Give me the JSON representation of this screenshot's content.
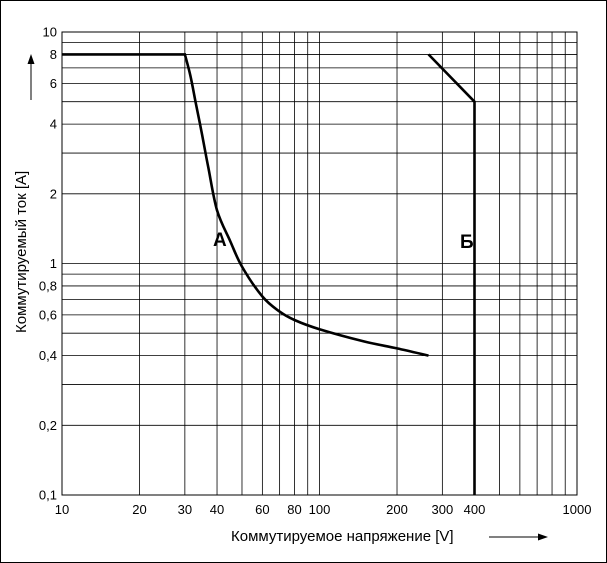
{
  "chart_data": {
    "type": "line",
    "x_scale": "log",
    "y_scale": "log",
    "xlim": [
      10,
      1000
    ],
    "ylim": [
      0.1,
      10
    ],
    "grid": true,
    "xlabel": "Коммутируемое напряжение [V]",
    "ylabel": "Коммутируемый ток [A]",
    "x_ticks": [
      {
        "value": 10,
        "label": "10"
      },
      {
        "value": 20,
        "label": "20"
      },
      {
        "value": 30,
        "label": "30"
      },
      {
        "value": 40,
        "label": "40"
      },
      {
        "value": 60,
        "label": "60"
      },
      {
        "value": 80,
        "label": "80"
      },
      {
        "value": 100,
        "label": "100"
      },
      {
        "value": 200,
        "label": "200"
      },
      {
        "value": 300,
        "label": "300"
      },
      {
        "value": 400,
        "label": "400"
      },
      {
        "value": 1000,
        "label": "1000"
      }
    ],
    "y_ticks": [
      {
        "value": 0.1,
        "label": "0,1"
      },
      {
        "value": 0.2,
        "label": "0,2"
      },
      {
        "value": 0.4,
        "label": "0,4"
      },
      {
        "value": 0.6,
        "label": "0,6"
      },
      {
        "value": 0.8,
        "label": "0,8"
      },
      {
        "value": 1,
        "label": "1"
      },
      {
        "value": 2,
        "label": "2"
      },
      {
        "value": 4,
        "label": "4"
      },
      {
        "value": 6,
        "label": "6"
      },
      {
        "value": 8,
        "label": "8"
      },
      {
        "value": 10,
        "label": "10"
      }
    ],
    "x_grid": [
      10,
      20,
      30,
      40,
      50,
      60,
      70,
      80,
      90,
      100,
      200,
      300,
      400,
      500,
      600,
      700,
      800,
      900,
      1000
    ],
    "y_grid": [
      0.1,
      0.2,
      0.3,
      0.4,
      0.5,
      0.6,
      0.7,
      0.8,
      0.9,
      1,
      2,
      3,
      4,
      5,
      6,
      7,
      8,
      9,
      10
    ],
    "series": [
      {
        "name": "А",
        "points": [
          [
            10,
            8
          ],
          [
            30,
            8
          ],
          [
            31.5,
            6.5
          ],
          [
            33,
            5
          ],
          [
            35,
            3.6
          ],
          [
            37,
            2.6
          ],
          [
            40,
            1.7
          ],
          [
            45,
            1.25
          ],
          [
            50,
            0.97
          ],
          [
            60,
            0.72
          ],
          [
            70,
            0.62
          ],
          [
            80,
            0.57
          ],
          [
            100,
            0.52
          ],
          [
            150,
            0.46
          ],
          [
            200,
            0.43
          ],
          [
            265,
            0.4
          ]
        ]
      },
      {
        "name": "Б",
        "points": [
          [
            265,
            8
          ],
          [
            400,
            5
          ],
          [
            400,
            0.1
          ]
        ]
      }
    ]
  }
}
